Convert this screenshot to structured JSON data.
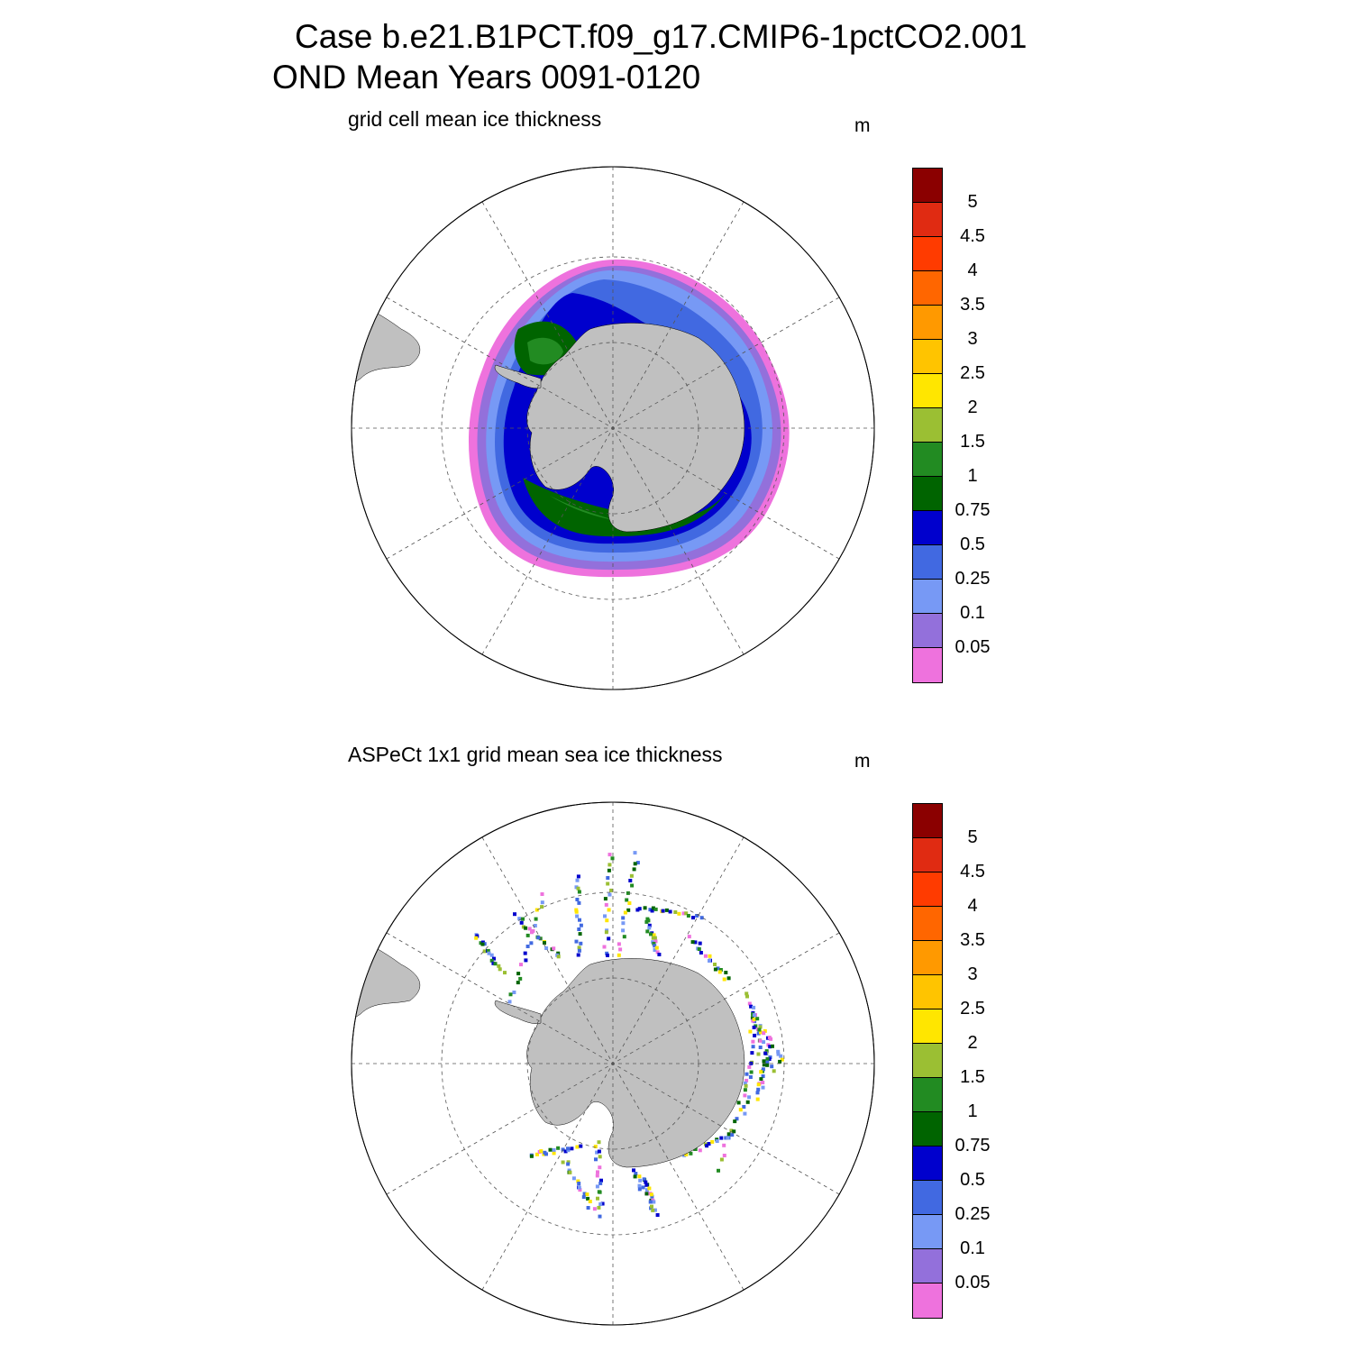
{
  "title": {
    "line1": "Case b.e21.B1PCT.f09_g17.CMIP6-1pctCO2.001",
    "line2": "OND Mean   Years 0091-0120"
  },
  "panels": [
    {
      "subtitle": "grid cell mean ice thickness",
      "units": "m"
    },
    {
      "subtitle": "ASPeCt 1x1 grid mean sea ice thickness",
      "units": "m"
    }
  ],
  "colorbar": {
    "colors_top_to_bottom": [
      "#8b0000",
      "#e02b12",
      "#ff3b00",
      "#ff6600",
      "#ff9900",
      "#ffc400",
      "#ffe600",
      "#9bbf33",
      "#228b22",
      "#006400",
      "#0000cd",
      "#4169e1",
      "#7799f5",
      "#9370db",
      "#ee72dd"
    ],
    "labels_top_to_bottom": [
      "5",
      "4.5",
      "4",
      "3.5",
      "3",
      "2.5",
      "2",
      "1.5",
      "1",
      "0.75",
      "0.5",
      "0.25",
      "0.1",
      "0.05"
    ]
  },
  "map": {
    "land_color": "#c0c0c0",
    "ocean_color": "#ffffff"
  }
}
